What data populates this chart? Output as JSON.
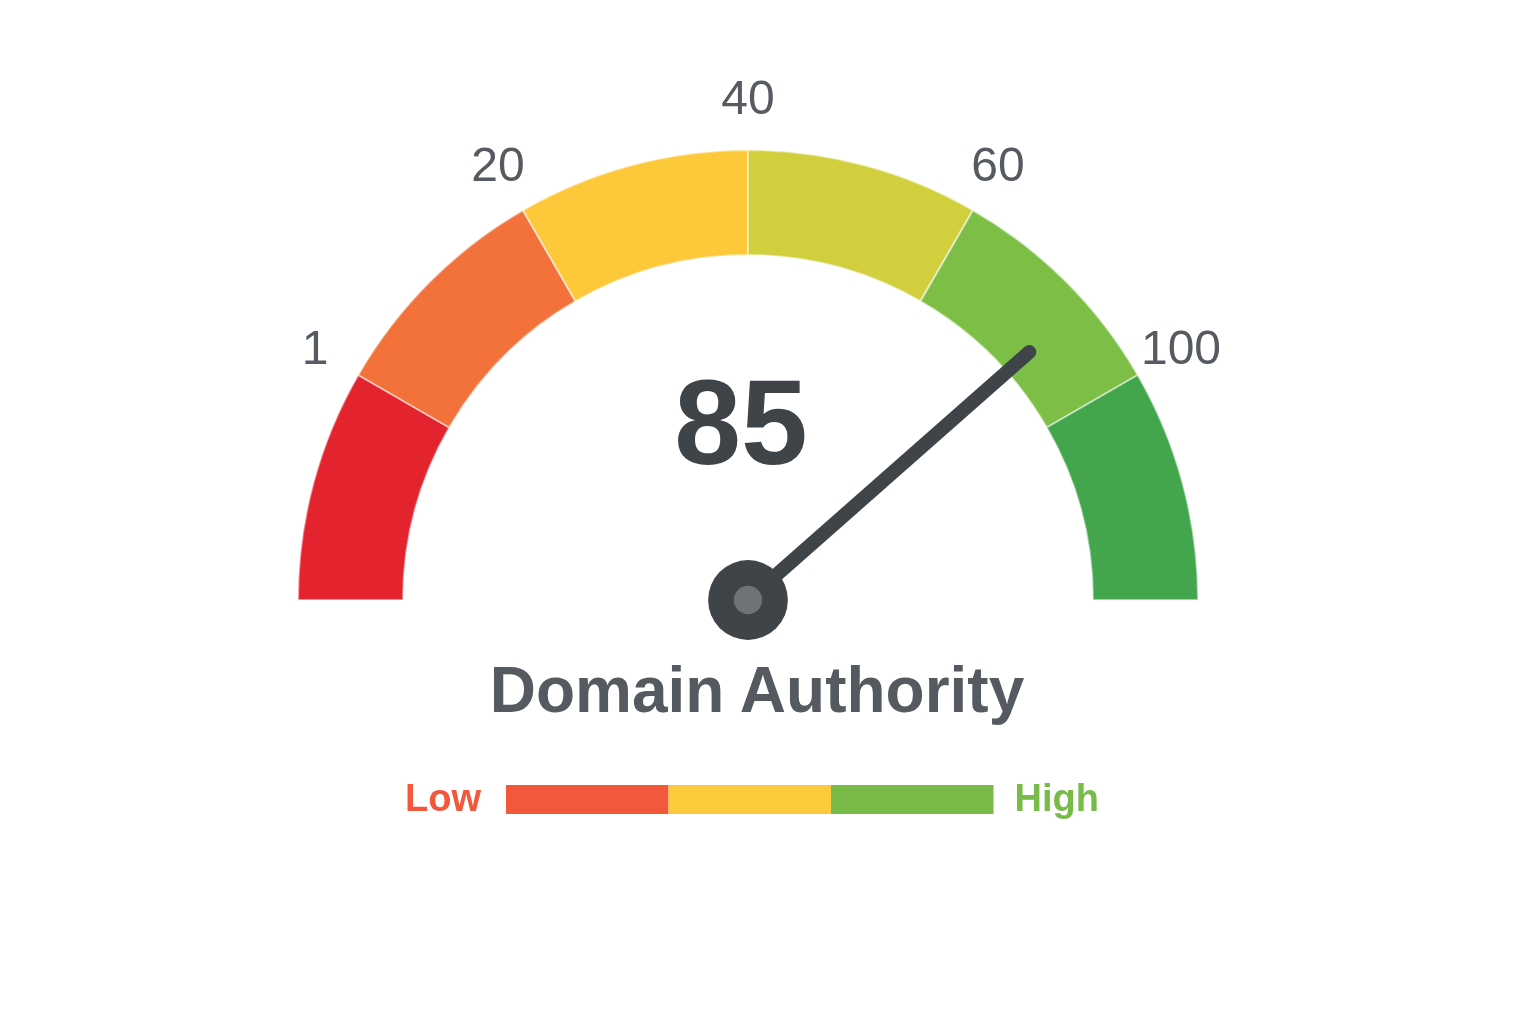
{
  "chart_data": {
    "type": "other",
    "title": "Domain Authority",
    "colors": [
      "#e3242f",
      "#f3713a",
      "#fdc93b",
      "#d2cf3e",
      "#7dbf46",
      "#43a64d",
      "#f2583b",
      "#fdca3c",
      "#78bb48"
    ],
    "series": [
      {
        "color": "#3f4449",
        "values": [
          85
        ]
      }
    ],
    "data_labels": true,
    "annotations": [
      "1",
      "20",
      "40",
      "60",
      "100",
      "Low",
      "High"
    ]
  }
}
